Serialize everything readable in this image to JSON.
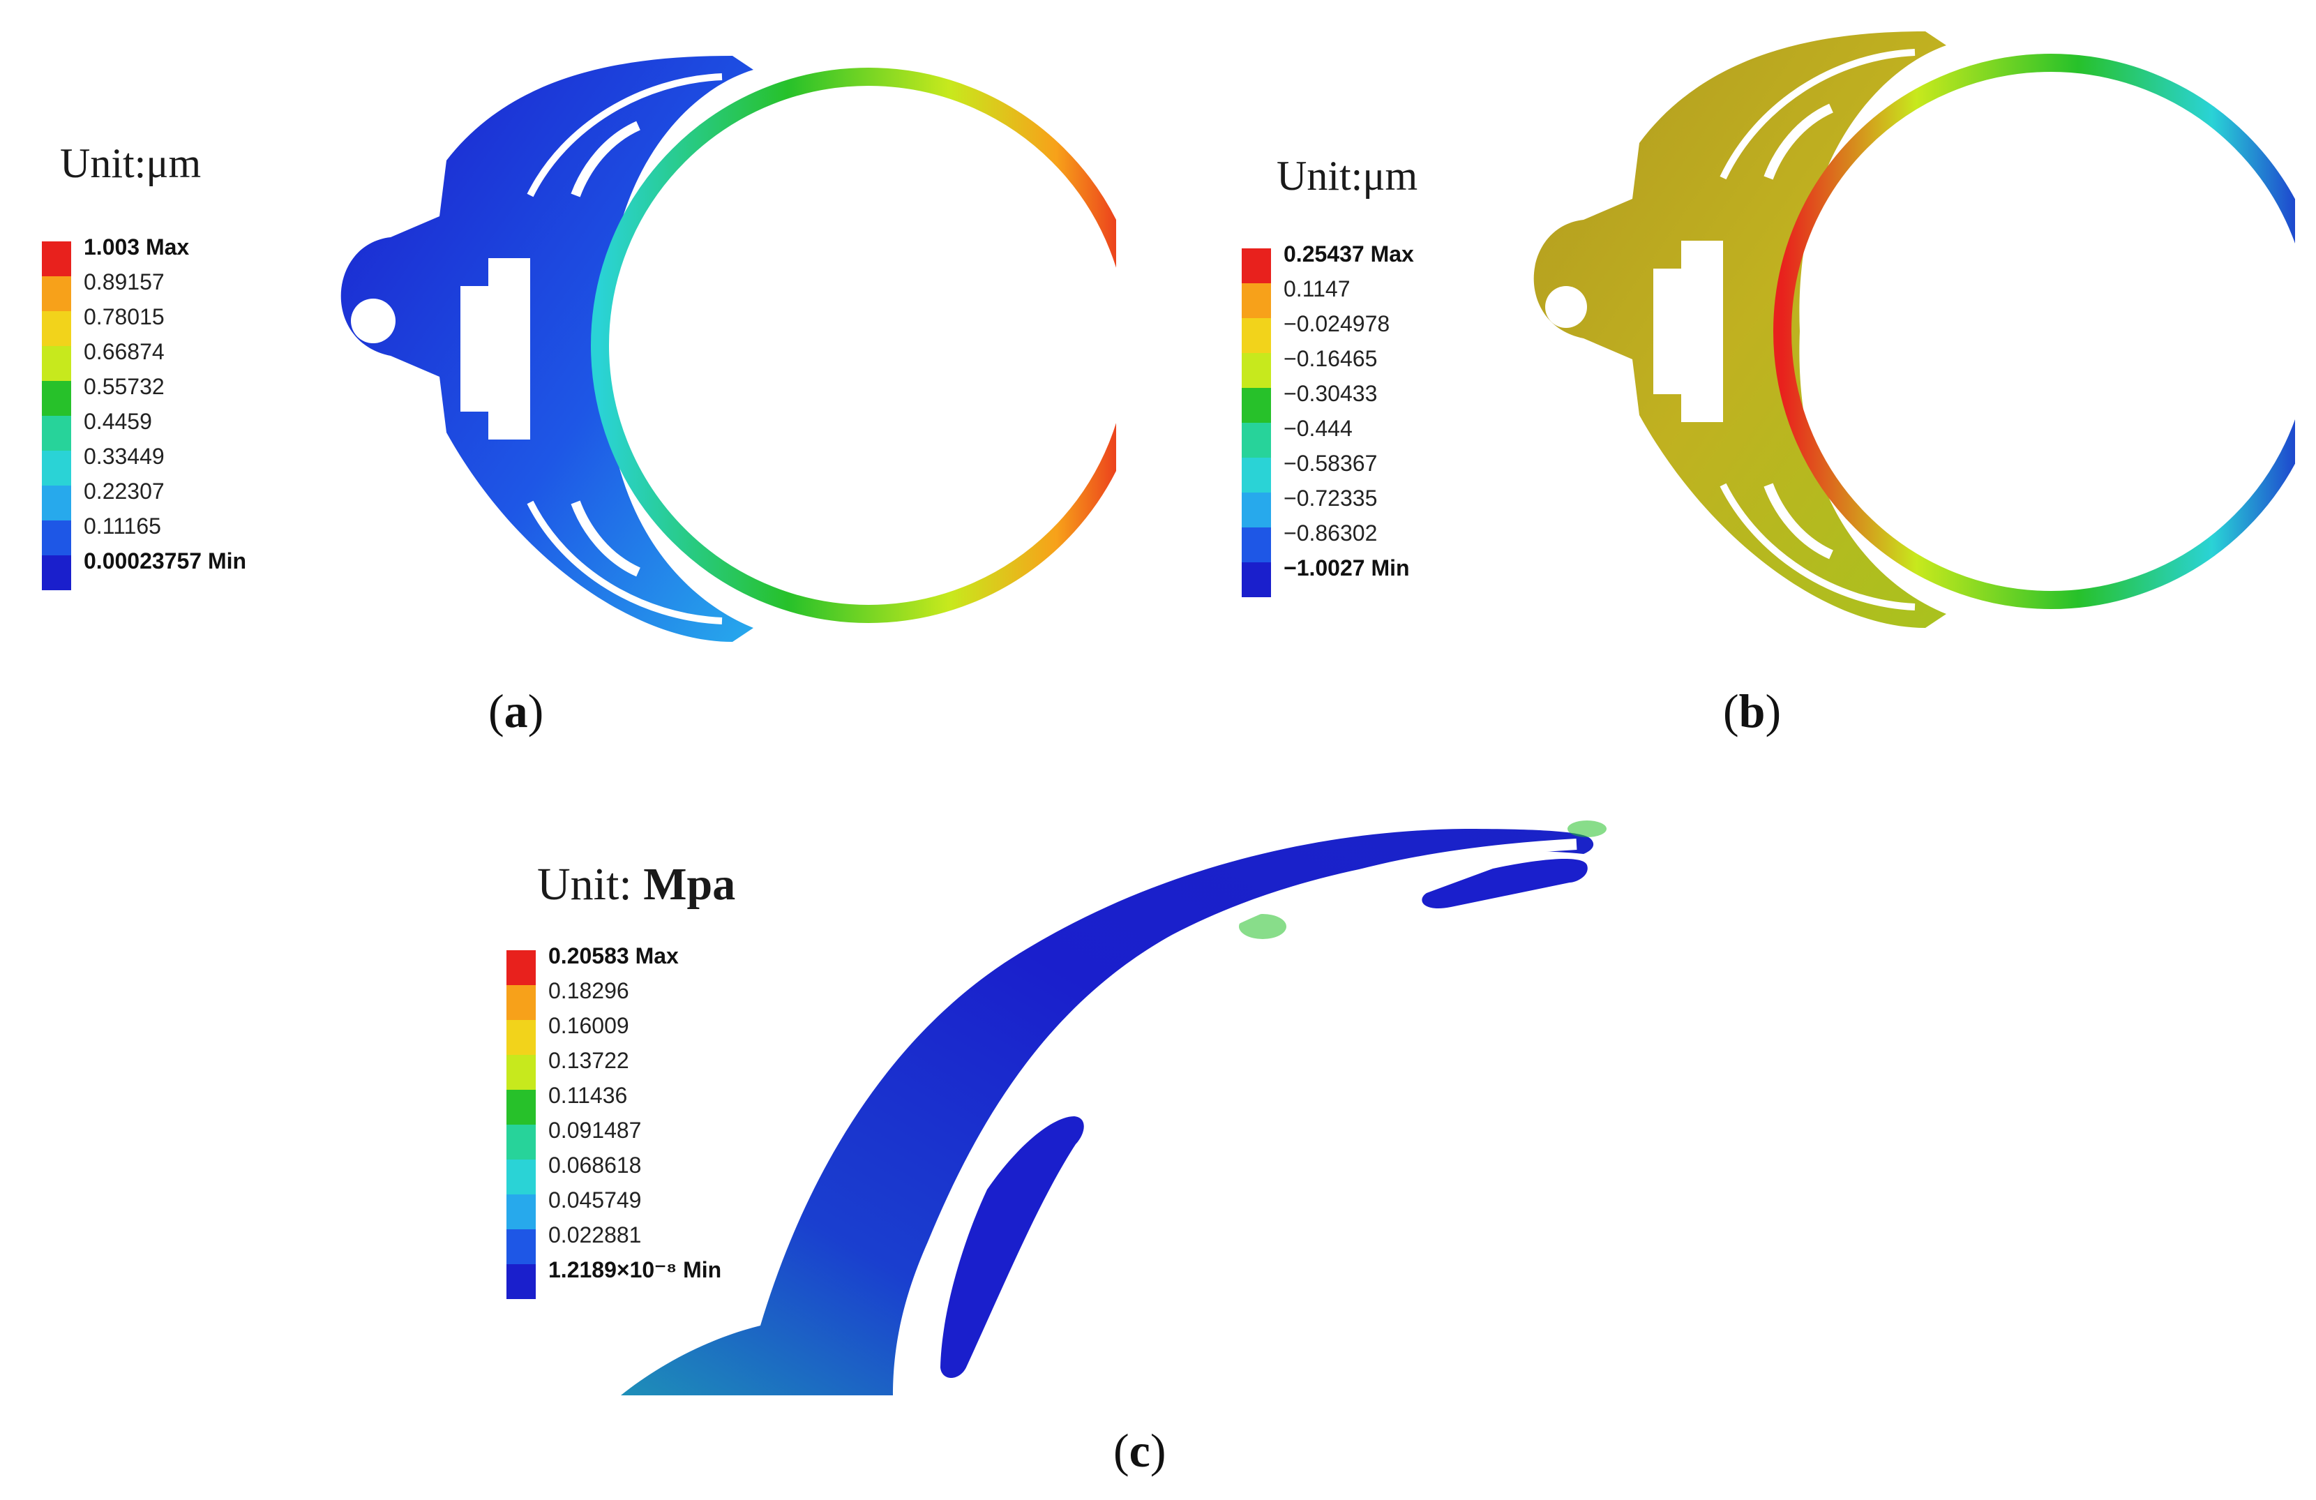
{
  "panels": [
    {
      "id": "a",
      "caption_letter": "a",
      "unit_label": "Unit:μm",
      "legend": {
        "labels": [
          "1.003 Max",
          "0.89157",
          "0.78015",
          "0.66874",
          "0.55732",
          "0.4459",
          "0.33449",
          "0.22307",
          "0.11165",
          "0.00023757 Min"
        ],
        "colors": [
          "#e8211d",
          "#f7a11a",
          "#f2d31b",
          "#c7e91d",
          "#27c12a",
          "#27d39a",
          "#2ad3d6",
          "#27a9ec",
          "#1e57e6",
          "#1a1fcc"
        ]
      }
    },
    {
      "id": "b",
      "caption_letter": "b",
      "unit_label": "Unit:μm",
      "legend": {
        "labels": [
          "0.25437 Max",
          "0.1147",
          "−0.024978",
          "−0.16465",
          "−0.30433",
          "−0.444",
          "−0.58367",
          "−0.72335",
          "−0.86302",
          "−1.0027 Min"
        ],
        "colors": [
          "#e8211d",
          "#f7a11a",
          "#f2d31b",
          "#c7e91d",
          "#27c12a",
          "#27d39a",
          "#2ad3d6",
          "#27a9ec",
          "#1e57e6",
          "#1a1fcc"
        ]
      }
    },
    {
      "id": "c",
      "caption_letter": "c",
      "unit_prefix": "Unit: ",
      "unit_bold": "Mpa",
      "legend": {
        "labels": [
          "0.20583 Max",
          "0.18296",
          "0.16009",
          "0.13722",
          "0.11436",
          "0.091487",
          "0.068618",
          "0.045749",
          "0.022881",
          "1.2189×10⁻⁸ Min"
        ],
        "colors": [
          "#e8211d",
          "#f7a11a",
          "#f2d31b",
          "#c7e91d",
          "#27c12a",
          "#27d39a",
          "#2ad3d6",
          "#27a9ec",
          "#1e57e6",
          "#1a1fcc"
        ]
      }
    }
  ]
}
